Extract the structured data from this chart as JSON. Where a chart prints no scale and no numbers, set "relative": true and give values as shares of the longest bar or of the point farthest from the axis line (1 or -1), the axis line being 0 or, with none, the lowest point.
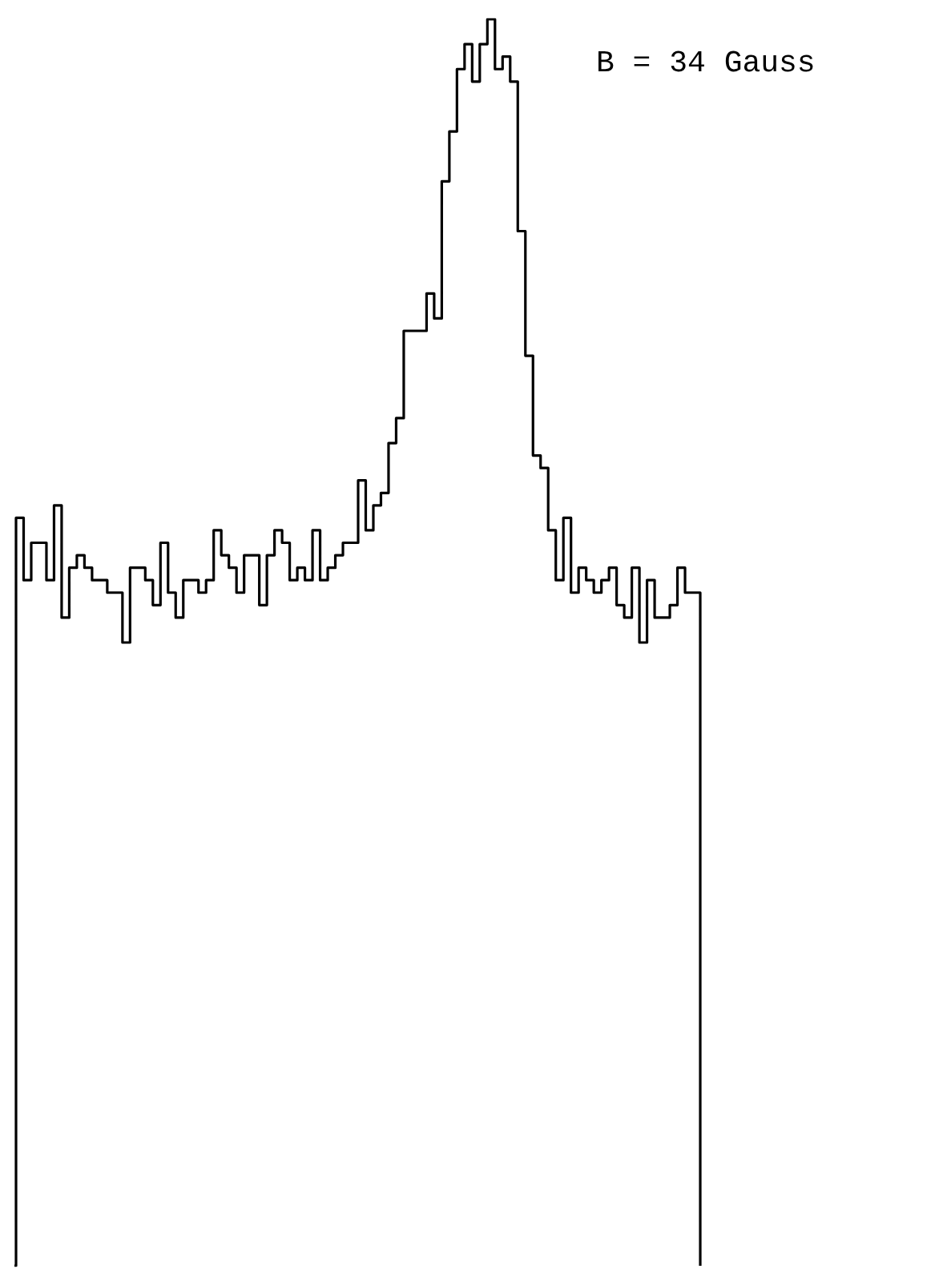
{
  "chart_data": {
    "type": "step",
    "relative": true,
    "categories": [
      null,
      null,
      null,
      null,
      null,
      null,
      null,
      null,
      null,
      null,
      null,
      null,
      null,
      null,
      null,
      null,
      null,
      null,
      null,
      null,
      null,
      null,
      null,
      null,
      null,
      null,
      null,
      null,
      null,
      null,
      null,
      null,
      null,
      null,
      null,
      null,
      null,
      null,
      null,
      null,
      null,
      null,
      null,
      null,
      null,
      null,
      null,
      null,
      null,
      null,
      null,
      null,
      null,
      null,
      null,
      null,
      null,
      null,
      null,
      null,
      null,
      null,
      null,
      null,
      null,
      null,
      null,
      null,
      null,
      null,
      null,
      null,
      null,
      null,
      null,
      null,
      null,
      null,
      null,
      null,
      null,
      null,
      null,
      null,
      null,
      null,
      null,
      null,
      null,
      null,
      null,
      null
    ],
    "values": [
      0,
      0.6,
      0.55,
      0.58,
      0.58,
      0.55,
      0.61,
      0.52,
      0.56,
      0.57,
      0.56,
      0.55,
      0.55,
      0.54,
      0.54,
      0.5,
      0.56,
      0.56,
      0.55,
      0.53,
      0.58,
      0.54,
      0.52,
      0.55,
      0.55,
      0.54,
      0.55,
      0.59,
      0.57,
      0.56,
      0.54,
      0.57,
      0.57,
      0.53,
      0.57,
      0.59,
      0.58,
      0.55,
      0.56,
      0.55,
      0.59,
      0.55,
      0.56,
      0.57,
      0.58,
      0.58,
      0.63,
      0.59,
      0.61,
      0.62,
      0.66,
      0.68,
      0.75,
      0.75,
      0.75,
      0.78,
      0.76,
      0.87,
      0.91,
      0.96,
      0.98,
      0.95,
      0.98,
      1,
      0.96,
      0.97,
      0.95,
      0.83,
      0.73,
      0.65,
      0.64,
      0.59,
      0.55,
      0.6,
      0.54,
      0.56,
      0.55,
      0.54,
      0.55,
      0.56,
      0.53,
      0.52,
      0.56,
      0.5,
      0.55,
      0.52,
      0.52,
      0.53,
      0.56,
      0.54,
      0.54,
      0
    ],
    "color": "#000000",
    "marker": "none",
    "line_style": "solid",
    "annotations": [
      "B = 34 Gauss"
    ]
  }
}
